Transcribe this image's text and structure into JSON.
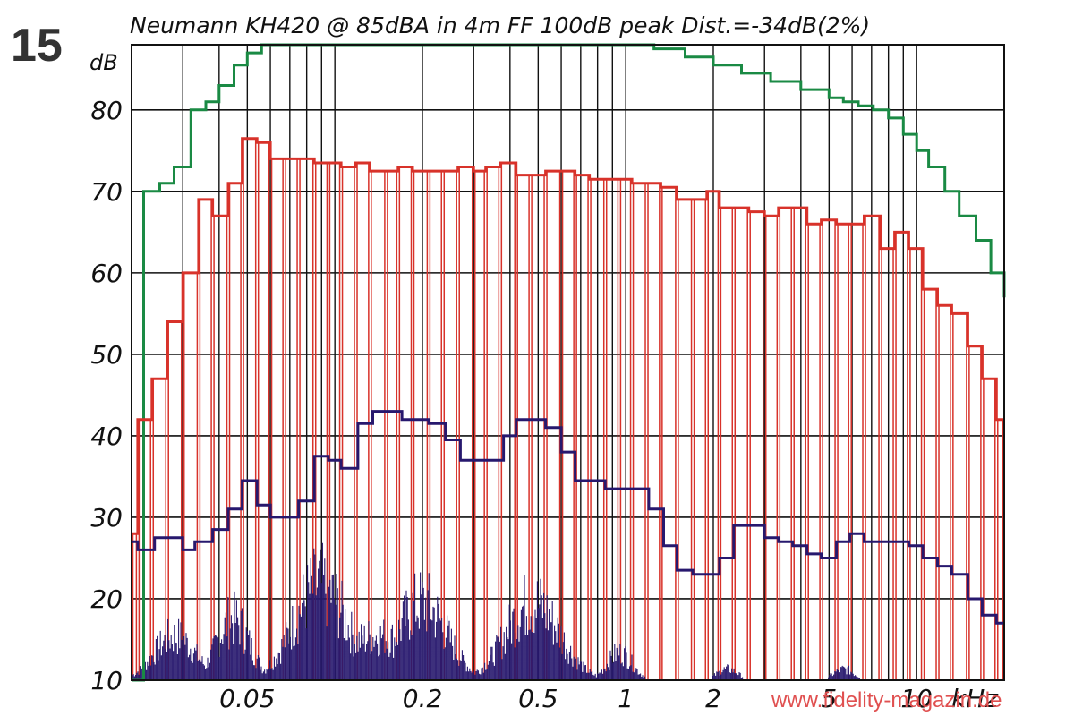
{
  "figure_number": "15",
  "watermark": "www.fidelity-magazin.de",
  "chart_data": {
    "type": "line",
    "title": "Neumann KH420 @ 85dBA in 4m FF 100dB peak Dist.=-34dB(2%)",
    "ylabel": "dB",
    "xlabel": "kHz",
    "x_scale": "log",
    "x_unit": "kHz",
    "xlim": [
      0.02,
      20
    ],
    "ylim": [
      10,
      88
    ],
    "y_ticks": [
      10,
      20,
      30,
      40,
      50,
      60,
      70,
      80
    ],
    "y_tick_labels": [
      "10",
      "20",
      "30",
      "40",
      "50",
      "60",
      "70",
      "80"
    ],
    "x_tick_values": [
      0.05,
      0.2,
      0.5,
      1,
      2,
      5,
      10
    ],
    "x_tick_labels": [
      "0.05",
      "0.2",
      "0.5",
      "1",
      "2",
      "5",
      "10"
    ],
    "grid": true,
    "colors": {
      "max_spl": "#1a8a44",
      "red_curve": "#d8322a",
      "distortion": "#27186e",
      "grid": "#111111"
    },
    "series": [
      {
        "color": "#1a8a44",
        "step": true,
        "x": [
          0.02,
          0.022,
          0.025,
          0.028,
          0.032,
          0.036,
          0.04,
          0.045,
          0.05,
          0.056,
          0.063,
          0.2,
          0.8,
          1,
          1.25,
          1.6,
          2,
          2.5,
          3.15,
          4,
          5,
          5.6,
          6.3,
          7.1,
          8,
          9,
          10,
          11,
          12.5,
          14,
          16,
          18,
          20
        ],
        "values": [
          10,
          70,
          71,
          73,
          80,
          81,
          83,
          85.5,
          87,
          88,
          88,
          88,
          88,
          88,
          87.5,
          86.5,
          85.5,
          84.5,
          83.5,
          82.5,
          81.5,
          81,
          80.5,
          80,
          79,
          77,
          75,
          73,
          70,
          67,
          64,
          60,
          57
        ]
      },
      {
        "color": "#d8322a",
        "step": true,
        "x": [
          0.02,
          0.021,
          0.0235,
          0.0265,
          0.03,
          0.034,
          0.038,
          0.043,
          0.048,
          0.054,
          0.06,
          0.067,
          0.075,
          0.085,
          0.095,
          0.105,
          0.118,
          0.132,
          0.15,
          0.165,
          0.185,
          0.21,
          0.235,
          0.265,
          0.3,
          0.33,
          0.37,
          0.42,
          0.47,
          0.53,
          0.6,
          0.67,
          0.75,
          0.85,
          0.95,
          1.05,
          1.18,
          1.32,
          1.5,
          1.7,
          1.9,
          2.1,
          2.35,
          2.65,
          3,
          3.35,
          3.75,
          4.2,
          4.7,
          5.3,
          5.9,
          6.6,
          7.5,
          8.4,
          9.4,
          10.5,
          11.8,
          13.2,
          15,
          16.8,
          18.8
        ],
        "values": [
          28,
          42,
          47,
          54,
          60,
          69,
          67,
          71,
          76.5,
          76,
          74,
          74,
          74,
          73.5,
          73.5,
          73,
          73.5,
          72.5,
          72.5,
          73,
          72.5,
          72.5,
          72.5,
          73,
          72.5,
          73,
          73.5,
          72,
          72,
          72.5,
          72.5,
          72,
          71.5,
          71.5,
          71.5,
          71,
          71,
          70.5,
          69,
          69,
          70,
          68,
          68,
          67.5,
          67,
          68,
          68,
          66,
          66.5,
          66,
          66,
          67,
          63,
          65,
          63,
          58,
          56,
          55,
          51,
          47,
          42
        ]
      },
      {
        "color": "#27186e",
        "step": true,
        "x": [
          0.02,
          0.021,
          0.024,
          0.03,
          0.033,
          0.038,
          0.043,
          0.048,
          0.054,
          0.06,
          0.067,
          0.075,
          0.085,
          0.095,
          0.105,
          0.12,
          0.135,
          0.155,
          0.17,
          0.19,
          0.21,
          0.24,
          0.27,
          0.3,
          0.34,
          0.38,
          0.42,
          0.47,
          0.53,
          0.6,
          0.67,
          0.75,
          0.85,
          0.95,
          1.05,
          1.2,
          1.35,
          1.5,
          1.7,
          1.9,
          2.1,
          2.35,
          2.65,
          3,
          3.35,
          3.75,
          4.2,
          4.7,
          5.3,
          5.9,
          6.6,
          7.5,
          8.4,
          9.4,
          10.5,
          11.8,
          13.2,
          15,
          16.8,
          18.8
        ],
        "values": [
          27,
          26,
          27.5,
          26,
          27,
          28.5,
          31,
          34.5,
          31.5,
          30,
          30,
          32,
          37.5,
          37,
          36,
          41.5,
          43,
          43,
          42,
          42,
          41.5,
          39.5,
          37,
          37,
          37,
          40,
          42,
          42,
          41,
          38,
          34.5,
          34.5,
          33.5,
          33.5,
          33.5,
          31,
          26.5,
          23.5,
          23,
          23,
          25,
          29,
          29,
          27.5,
          27,
          26.5,
          25.5,
          25,
          27,
          28,
          27,
          27,
          27,
          26.5,
          25,
          24,
          23,
          20,
          18,
          17
        ]
      }
    ]
  }
}
